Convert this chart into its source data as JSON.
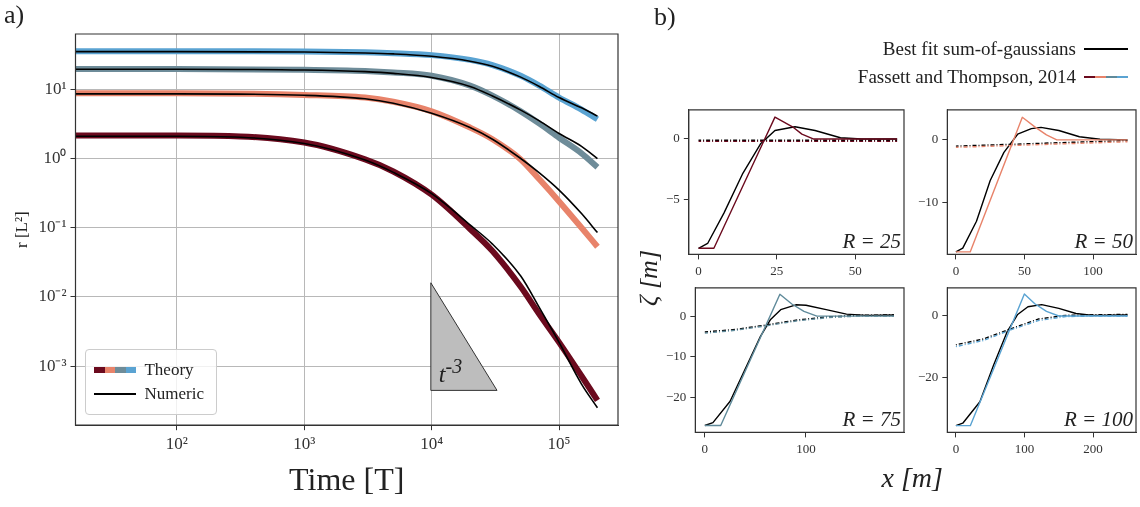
{
  "chart_data": [
    {
      "type": "line",
      "title": "a)",
      "xlabel": "Time [T]",
      "ylabel": "r [L²]",
      "log": "xy",
      "grid": true,
      "legend": "bottom left",
      "x": [
        16,
        100,
        1000,
        3000,
        5000,
        10000,
        20000,
        30000,
        50000,
        70000,
        100000,
        150000,
        200000
      ],
      "xlim": [
        16,
        290000
      ],
      "ylim": [
        0.00014,
        63
      ],
      "xticks": [
        {
          "value": 100,
          "label": "10²"
        },
        {
          "value": 1000,
          "label": "10³"
        },
        {
          "value": 10000,
          "label": "10⁴"
        },
        {
          "value": 100000,
          "label": "10⁵"
        }
      ],
      "yticks": [
        {
          "value": 0.001,
          "label": "10⁻³"
        },
        {
          "value": 0.01,
          "label": "10⁻²"
        },
        {
          "value": 0.1,
          "label": "10⁻¹"
        },
        {
          "value": 1,
          "label": "10⁰"
        },
        {
          "value": 10,
          "label": "10¹"
        }
      ],
      "annotations": [
        "t$^{-3}$"
      ],
      "series": [
        {
          "name": "Theory",
          "color": "#6b0a1e",
          "values": [
            2.15,
            2.15,
            1.7,
            0.97,
            0.65,
            0.3,
            0.096,
            0.046,
            0.014,
            0.0056,
            0.0022,
            0.00072,
            0.00032
          ]
        },
        {
          "color": "#e8836a",
          "values": [
            8.8,
            8.8,
            8.3,
            7.6,
            6.6,
            4.8,
            2.8,
            1.9,
            0.97,
            0.5,
            0.24,
            0.1,
            0.053
          ]
        },
        {
          "color": "#6e8c99",
          "values": [
            19.6,
            19.6,
            19.2,
            18.4,
            17.5,
            15.7,
            11.3,
            8.1,
            4.8,
            3.2,
            2.0,
            1.19,
            0.75
          ]
        },
        {
          "color": "#5aa3d2",
          "values": [
            35.6,
            35.6,
            35.2,
            34.2,
            33.3,
            31.2,
            26.6,
            22.4,
            15.7,
            11.3,
            7.6,
            5.1,
            3.7
          ]
        },
        {
          "name": "Numeric",
          "color": "#000000",
          "values": [
            2.1,
            2.1,
            1.65,
            0.95,
            0.63,
            0.31,
            0.11,
            0.058,
            0.02,
            0.007,
            0.0022,
            0.00055,
            0.00025
          ]
        },
        {
          "color": "#000000",
          "values": [
            8.6,
            8.6,
            8.2,
            7.3,
            6.3,
            4.5,
            2.8,
            1.9,
            1.0,
            0.62,
            0.35,
            0.16,
            0.085
          ]
        },
        {
          "color": "#000000",
          "values": [
            19.5,
            19.5,
            19,
            18,
            17,
            14.8,
            11,
            8,
            5,
            3.5,
            2.3,
            1.5,
            1.0
          ]
        },
        {
          "color": "#000000",
          "values": [
            35,
            35,
            34.6,
            33.5,
            32.5,
            30,
            25.5,
            21.5,
            15,
            11,
            7.6,
            5.4,
            4.1
          ]
        }
      ]
    },
    {
      "type": "line",
      "title": "b)",
      "xlabel": "x [m]",
      "ylabel": "ζ [m]",
      "legend": "top right",
      "xlim": [
        -3.1,
        65.6
      ],
      "ylim": [
        -9.5,
        2.4
      ],
      "xticks": [
        0,
        25,
        50
      ],
      "yticks": [
        -5,
        0
      ],
      "annotations": [
        "R = 25"
      ],
      "series": [
        {
          "name": "Best fit sum-of-gaussians",
          "color": "#000000",
          "x": [
            0,
            2.9,
            8.1,
            14,
            19.8,
            24.4,
            30.8,
            37.2,
            45.3,
            52,
            63.4
          ],
          "values": [
            -9,
            -8.6,
            -6.1,
            -2.9,
            -0.4,
            0.7,
            1,
            0.7,
            0.1,
            0,
            0
          ]
        },
        {
          "color": "#000000",
          "line_style": "dashed",
          "x": [
            0,
            63.4
          ],
          "values": [
            -0.1,
            -0.1
          ]
        },
        {
          "name": "Fassett and Thompson, 2014",
          "color": "#6b0a1e",
          "x": [
            0,
            4.9,
            24.4,
            30,
            33,
            36.6,
            63.4
          ],
          "values": [
            -9,
            -9,
            1.8,
            1.0,
            0.4,
            0,
            0
          ]
        },
        {
          "color": "#6b0a1e",
          "line_style": "dashed",
          "x": [
            0,
            63.4
          ],
          "values": [
            -0.2,
            -0.2
          ]
        }
      ]
    },
    {
      "type": "line",
      "xlim": [
        -6.25,
        131.25
      ],
      "ylim": [
        -18.3,
        4.8
      ],
      "xticks": [
        0,
        50,
        100
      ],
      "yticks": [
        -10,
        0
      ],
      "annotations": [
        "R = 50"
      ],
      "series": [
        {
          "color": "#000000",
          "x": [
            0,
            5,
            15,
            25,
            35,
            45,
            55,
            62,
            75,
            90,
            105,
            125
          ],
          "values": [
            -17.9,
            -17.3,
            -13,
            -6.5,
            -2,
            0.9,
            1.8,
            2,
            1.5,
            0.5,
            0.1,
            0
          ]
        },
        {
          "color": "#000000",
          "line_style": "dashed",
          "x": [
            0,
            125
          ],
          "values": [
            -1.0,
            -0.1
          ]
        },
        {
          "color": "#e8836a",
          "x": [
            0,
            10.4,
            48.4,
            58,
            66,
            73.5,
            125
          ],
          "values": [
            -17.9,
            -17.9,
            3.6,
            2.0,
            0.8,
            0,
            0
          ]
        },
        {
          "color": "#e8836a",
          "line_style": "dashed",
          "x": [
            0,
            125
          ],
          "values": [
            -1.2,
            -0.3
          ]
        }
      ]
    },
    {
      "type": "line",
      "xlim": [
        -9.4,
        196.9
      ],
      "ylim": [
        -28.7,
        7
      ],
      "xticks": [
        0,
        100
      ],
      "yticks": [
        -20,
        -10,
        0
      ],
      "annotations": [
        "R = 75"
      ],
      "series": [
        {
          "color": "#000000",
          "x": [
            0,
            8,
            25,
            40,
            55,
            65,
            75,
            90,
            100,
            120,
            140,
            160,
            187
          ],
          "values": [
            -27,
            -26.3,
            -21,
            -13,
            -5,
            -0.8,
            1.6,
            2.8,
            2.7,
            1.6,
            0.5,
            0.2,
            0.3
          ]
        },
        {
          "color": "#000000",
          "line_style": "dashed",
          "x": [
            0,
            30,
            60,
            90,
            120,
            150,
            187
          ],
          "values": [
            -3.9,
            -3.3,
            -2.2,
            -1.0,
            -0.2,
            0.2,
            0.3
          ]
        },
        {
          "color": "#5f8a9a",
          "x": [
            0,
            15.7,
            74.2,
            86,
            98,
            110.8,
            187
          ],
          "values": [
            -27,
            -27,
            5.4,
            3.0,
            1.2,
            0,
            0
          ]
        },
        {
          "color": "#5f8a9a",
          "line_style": "dashed",
          "x": [
            0,
            30,
            60,
            90,
            120,
            150,
            187
          ],
          "values": [
            -4.2,
            -3.5,
            -2.4,
            -1.2,
            -0.4,
            0,
            0
          ]
        }
      ]
    },
    {
      "type": "line",
      "xlim": [
        -12.5,
        262.5
      ],
      "ylim": [
        -38,
        9.2
      ],
      "xticks": [
        0,
        100,
        200
      ],
      "yticks": [
        -20,
        0
      ],
      "annotations": [
        "R = 100"
      ],
      "series": [
        {
          "color": "#000000",
          "x": [
            0,
            10,
            35,
            55,
            75,
            90,
            105,
            125,
            150,
            175,
            200,
            250
          ],
          "values": [
            -35.8,
            -35,
            -28,
            -16,
            -5,
            0.5,
            3,
            3.7,
            2.5,
            0.8,
            0.2,
            0.3
          ]
        },
        {
          "color": "#000000",
          "line_style": "dashed",
          "x": [
            0,
            40,
            80,
            120,
            160,
            200,
            250
          ],
          "values": [
            -9.4,
            -7.5,
            -4.2,
            -1.0,
            0.2,
            0.4,
            0.5
          ]
        },
        {
          "color": "#5aa3d2",
          "x": [
            0,
            21,
            99.8,
            115,
            132,
            150,
            250
          ],
          "values": [
            -35.8,
            -35.8,
            7.2,
            4.0,
            1.5,
            0,
            0
          ]
        },
        {
          "color": "#5aa3d2",
          "line_style": "dashed",
          "x": [
            0,
            40,
            80,
            120,
            160,
            200,
            250
          ],
          "values": [
            -10,
            -8,
            -4.5,
            -1.5,
            -0.2,
            0,
            0
          ]
        }
      ]
    }
  ]
}
